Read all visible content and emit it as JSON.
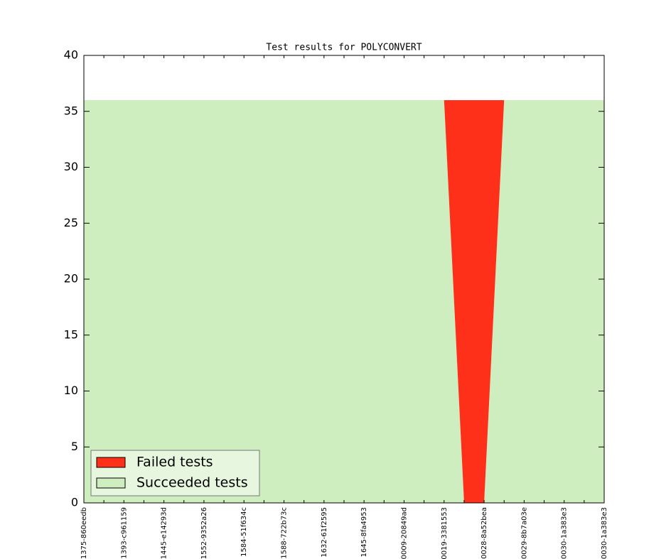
{
  "chart_data": {
    "type": "stacked_area",
    "title": "Test results for POLYCONVERT",
    "categories": [
      "1375-860eedb",
      null,
      "1393-c961159",
      null,
      "1445-e14293d",
      null,
      "1552-9352a26",
      null,
      "1584-51f634c",
      null,
      "1588-722b73c",
      null,
      "1632-61f2595",
      null,
      "1645-8fa4953",
      null,
      "0009-20849ad",
      null,
      "0019-3381553",
      null,
      "0028-8a52bea",
      null,
      "0029-8b7a03e",
      null,
      "0030-1a383e3",
      null,
      "0030-1a383e3"
    ],
    "series": [
      {
        "name": "Failed tests",
        "color": "#ff3019",
        "values": [
          0,
          0,
          0,
          0,
          0,
          0,
          0,
          0,
          0,
          0,
          0,
          0,
          0,
          0,
          0,
          0,
          0,
          0,
          0,
          36,
          36,
          0,
          0,
          0,
          0,
          0,
          0
        ]
      },
      {
        "name": "Succeeded tests",
        "color": "#cfeebf",
        "values": [
          36,
          36,
          36,
          36,
          36,
          36,
          36,
          36,
          36,
          36,
          36,
          36,
          36,
          36,
          36,
          36,
          36,
          36,
          36,
          0,
          0,
          36,
          36,
          36,
          36,
          36,
          36
        ]
      }
    ],
    "stack_order": "last series at bottom",
    "ylim": [
      0,
      40
    ],
    "yticks": [
      0,
      5,
      10,
      15,
      20,
      25,
      30,
      35,
      40
    ],
    "legend": "lower left"
  }
}
